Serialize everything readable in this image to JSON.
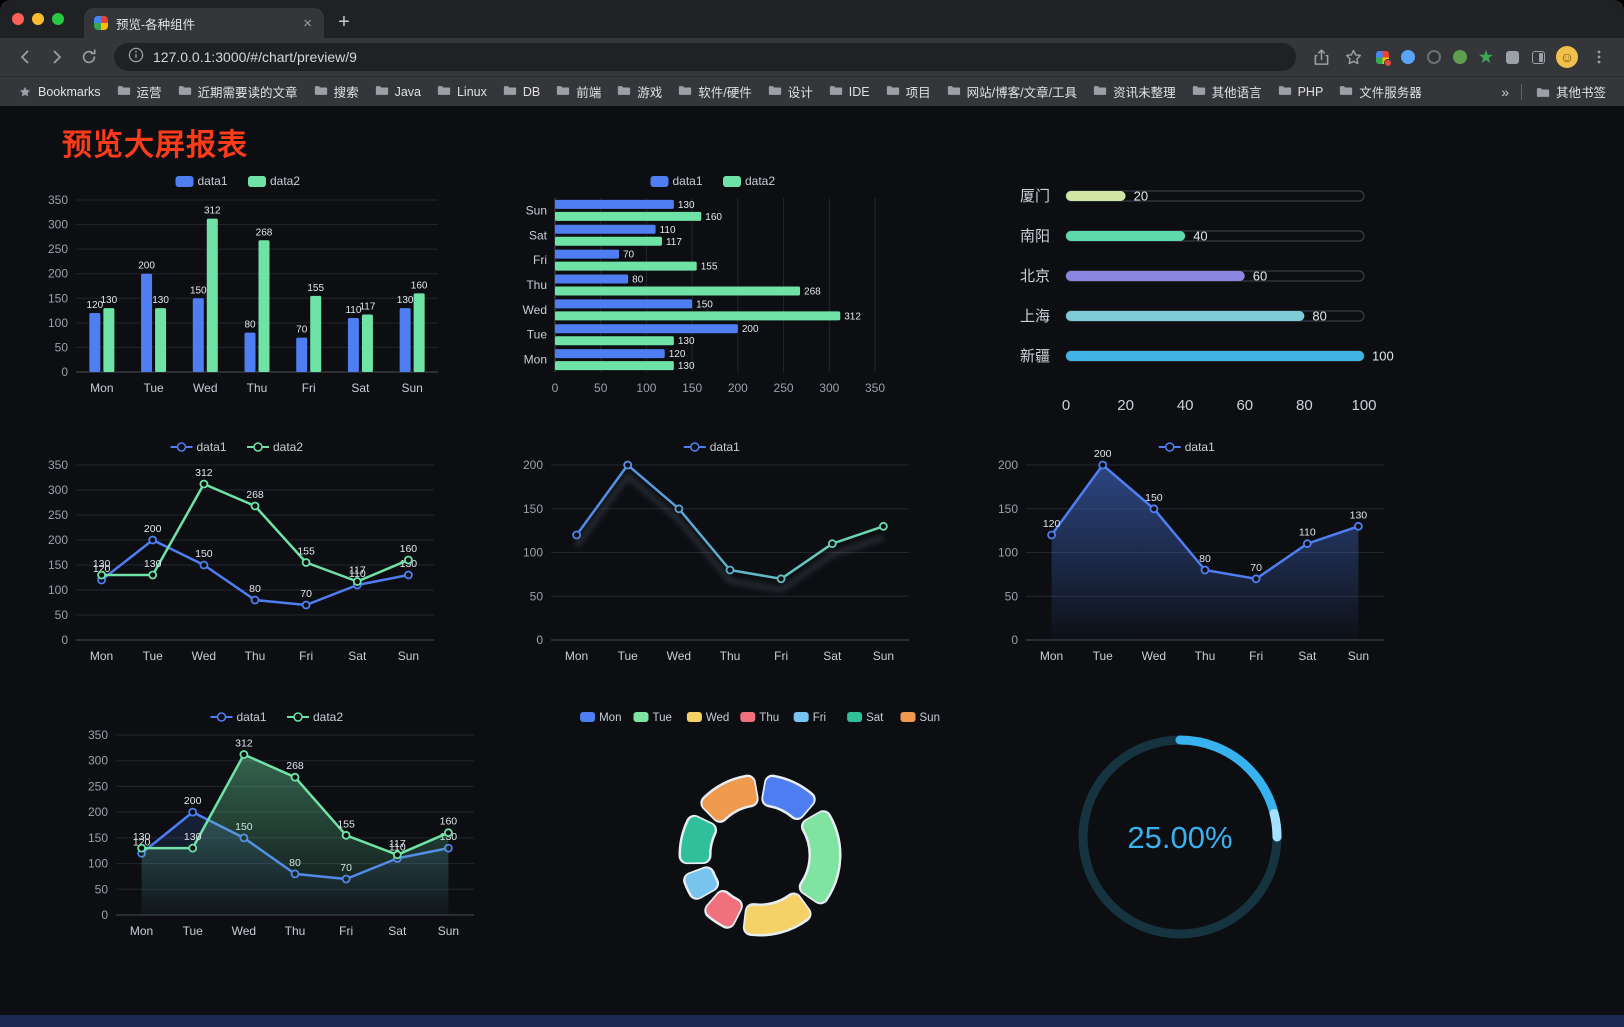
{
  "browser": {
    "tab_title": "预览-各种组件",
    "tab_close": "×",
    "new_tab": "+",
    "url": "127.0.0.1:3000/#/chart/preview/9",
    "bookmarks_bar": {
      "bookmarks_label": "Bookmarks",
      "items": [
        "运营",
        "近期需要读的文章",
        "搜索",
        "Java",
        "Linux",
        "DB",
        "前端",
        "游戏",
        "软件/硬件",
        "设计",
        "IDE",
        "项目",
        "网站/博客/文章/工具",
        "资讯未整理",
        "其他语言",
        "PHP",
        "文件服务器"
      ],
      "overflow": "»",
      "other_bookmarks": "其他书签"
    }
  },
  "page": {
    "title": "预览大屏报表",
    "title_color": "#fb3b1a",
    "background": "#0c0e12"
  },
  "chart_data": [
    {
      "id": "grouped-bar",
      "type": "bar",
      "legend": [
        "data1",
        "data2"
      ],
      "categories": [
        "Mon",
        "Tue",
        "Wed",
        "Thu",
        "Fri",
        "Sat",
        "Sun"
      ],
      "series": [
        {
          "name": "data1",
          "color": "#4e7ef2",
          "values": [
            120,
            200,
            150,
            80,
            70,
            110,
            130
          ]
        },
        {
          "name": "data2",
          "color": "#6fe3a5",
          "values": [
            130,
            130,
            312,
            268,
            155,
            117,
            160
          ]
        }
      ],
      "ylim": [
        0,
        350
      ],
      "yticks": [
        0,
        50,
        100,
        150,
        200,
        250,
        300,
        350
      ],
      "value_labels": true
    },
    {
      "id": "horizontal-bar",
      "type": "hbar",
      "orientation": "horizontal",
      "legend": [
        "data1",
        "data2"
      ],
      "categories": [
        "Mon",
        "Tue",
        "Wed",
        "Thu",
        "Fri",
        "Sat",
        "Sun"
      ],
      "categories_note": "Mon at bottom, Sun at top",
      "series": [
        {
          "name": "data1",
          "color": "#4e7ef2",
          "values": [
            120,
            200,
            150,
            80,
            70,
            110,
            130
          ]
        },
        {
          "name": "data2",
          "color": "#6fe3a5",
          "values": [
            130,
            130,
            312,
            268,
            155,
            117,
            160
          ]
        }
      ],
      "xlim": [
        0,
        350
      ],
      "xticks": [
        0,
        50,
        100,
        150,
        200,
        250,
        300,
        350
      ],
      "value_labels": true
    },
    {
      "id": "progress-bars",
      "type": "progress",
      "rows": [
        {
          "label": "厦门",
          "value": 20,
          "color": "#cfe7a2"
        },
        {
          "label": "南阳",
          "value": 40,
          "color": "#5ed9ae"
        },
        {
          "label": "北京",
          "value": 60,
          "color": "#8b86df"
        },
        {
          "label": "上海",
          "value": 80,
          "color": "#7fccd9"
        },
        {
          "label": "新疆",
          "value": 100,
          "color": "#41b4e6"
        }
      ],
      "xlim": [
        0,
        100
      ],
      "xticks": [
        0,
        20,
        40,
        60,
        80,
        100
      ]
    },
    {
      "id": "two-series-line",
      "type": "line",
      "legend": [
        "data1",
        "data2"
      ],
      "categories": [
        "Mon",
        "Tue",
        "Wed",
        "Thu",
        "Fri",
        "Sat",
        "Sun"
      ],
      "series": [
        {
          "name": "data1",
          "color": "#4e7ef2",
          "values": [
            120,
            200,
            150,
            80,
            70,
            110,
            130
          ]
        },
        {
          "name": "data2",
          "color": "#6fe3a5",
          "values": [
            130,
            130,
            312,
            268,
            155,
            117,
            160
          ]
        }
      ],
      "ylim": [
        0,
        350
      ],
      "yticks": [
        0,
        50,
        100,
        150,
        200,
        250,
        300,
        350
      ],
      "value_labels": true
    },
    {
      "id": "gradient-line",
      "type": "line",
      "legend": [
        "data1"
      ],
      "categories": [
        "Mon",
        "Tue",
        "Wed",
        "Thu",
        "Fri",
        "Sat",
        "Sun"
      ],
      "series": [
        {
          "name": "data1",
          "gradient": [
            "#4e7ef2",
            "#6fe3a5"
          ],
          "values": [
            120,
            200,
            150,
            80,
            70,
            110,
            130
          ]
        }
      ],
      "ylim": [
        0,
        200
      ],
      "yticks": [
        0,
        50,
        100,
        150,
        200
      ],
      "value_labels": false,
      "shadow": true
    },
    {
      "id": "area-line",
      "type": "area",
      "legend": [
        "data1"
      ],
      "categories": [
        "Mon",
        "Tue",
        "Wed",
        "Thu",
        "Fri",
        "Sat",
        "Sun"
      ],
      "series": [
        {
          "name": "data1",
          "color": "#4e7ef2",
          "values": [
            120,
            200,
            150,
            80,
            70,
            110,
            130
          ],
          "area": true,
          "areaOpacity": 0.5
        }
      ],
      "ylim": [
        0,
        200
      ],
      "yticks": [
        0,
        50,
        100,
        150,
        200
      ],
      "value_labels": true
    },
    {
      "id": "two-series-area-line",
      "type": "area",
      "legend": [
        "data1",
        "data2"
      ],
      "categories": [
        "Mon",
        "Tue",
        "Wed",
        "Thu",
        "Fri",
        "Sat",
        "Sun"
      ],
      "series": [
        {
          "name": "data1",
          "color": "#4e7ef2",
          "values": [
            120,
            200,
            150,
            80,
            70,
            110,
            130
          ],
          "area": true,
          "areaOpacity": 0.3
        },
        {
          "name": "data2",
          "color": "#6fe3a5",
          "values": [
            130,
            130,
            312,
            268,
            155,
            117,
            160
          ],
          "area": true,
          "areaOpacity": 0.45
        }
      ],
      "ylim": [
        0,
        350
      ],
      "yticks": [
        0,
        50,
        100,
        150,
        200,
        250,
        300,
        350
      ],
      "value_labels": true
    },
    {
      "id": "donut",
      "type": "pie",
      "legend": [
        "Mon",
        "Tue",
        "Wed",
        "Thu",
        "Fri",
        "Sat",
        "Sun"
      ],
      "slices": [
        {
          "name": "Mon",
          "value": 120,
          "color": "#4e7ef2"
        },
        {
          "name": "Tue",
          "value": 200,
          "color": "#7fe3a1"
        },
        {
          "name": "Wed",
          "value": 150,
          "color": "#f5d267"
        },
        {
          "name": "Thu",
          "value": 80,
          "color": "#f0707e"
        },
        {
          "name": "Fri",
          "value": 70,
          "color": "#77c4ee"
        },
        {
          "name": "Sat",
          "value": 110,
          "color": "#2fbf9a"
        },
        {
          "name": "Sun",
          "value": 130,
          "color": "#f09a50"
        }
      ],
      "inner_radius": 50,
      "outer_radius": 80
    },
    {
      "id": "gauge",
      "type": "gauge",
      "value": 25,
      "label": "25.00%",
      "color": "#38b2ef",
      "track": "#163440"
    }
  ]
}
